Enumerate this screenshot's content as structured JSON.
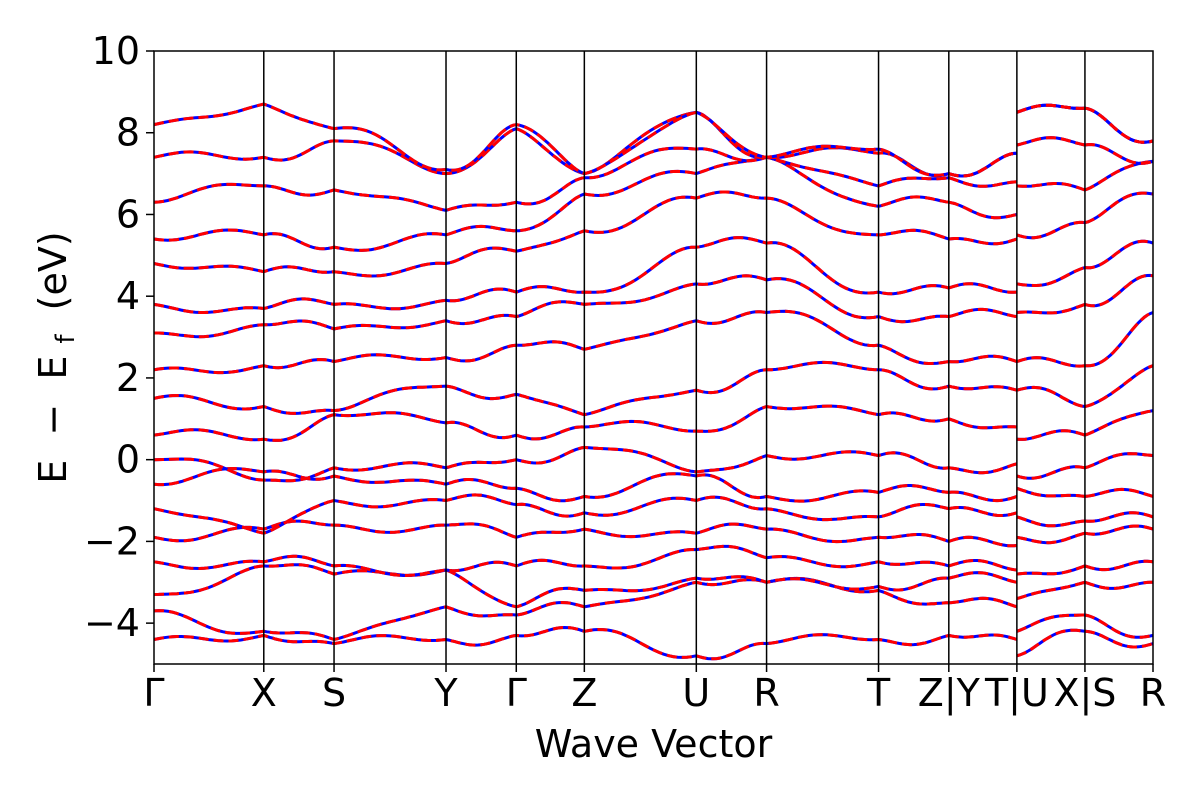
{
  "chart_data": {
    "type": "line",
    "xlabel": "Wave Vector",
    "ylabel_parts": {
      "E1": "E",
      "minus": "−",
      "E2": "E",
      "sub": "f",
      "unit": "(eV)"
    },
    "ylim": [
      -5,
      10
    ],
    "yticks": [
      -4,
      -2,
      0,
      2,
      4,
      6,
      8,
      10
    ],
    "ytick_labels": [
      "−4",
      "−2",
      "0",
      "2",
      "4",
      "6",
      "8",
      "10"
    ],
    "segments": [
      {
        "path": [
          "Γ",
          "X",
          "S",
          "Y",
          "Γ",
          "Z",
          "U",
          "R",
          "T",
          "Z"
        ],
        "k": [
          0,
          1.0,
          1.64,
          2.66,
          3.3,
          3.92,
          4.94,
          5.58,
          6.6,
          7.24
        ]
      },
      {
        "path": [
          "Y",
          "T"
        ],
        "k": [
          7.24,
          7.86
        ]
      },
      {
        "path": [
          "U",
          "X"
        ],
        "k": [
          7.86,
          8.48
        ]
      },
      {
        "path": [
          "S",
          "R"
        ],
        "k": [
          8.48,
          9.1
        ]
      }
    ],
    "tick_labels": [
      "Γ",
      "X",
      "S",
      "Y",
      "Γ",
      "Z",
      "U",
      "R",
      "T",
      "Z|Y",
      "T|U",
      "X|S",
      "R"
    ],
    "series": [
      {
        "color": "#0000ff",
        "style": "solid",
        "bands_at_nodes": [
          [
            -4.4,
            -4.3,
            -4.5,
            -4.4,
            -4.3,
            -4.2,
            -4.8,
            -4.5,
            -4.4,
            -4.3,
            -4.4,
            -4.8,
            -4.2,
            -4.5
          ],
          [
            -3.7,
            -4.2,
            -4.4,
            -3.6,
            -3.8,
            -3.6,
            -3.0,
            -3.0,
            -3.2,
            -3.5,
            -3.6,
            -4.2,
            -3.8,
            -4.3
          ],
          [
            -3.3,
            -2.6,
            -2.8,
            -2.7,
            -3.6,
            -3.2,
            -2.9,
            -3.0,
            -3.1,
            -2.9,
            -3.0,
            -3.4,
            -3.0,
            -3.0
          ],
          [
            -2.5,
            -2.5,
            -2.6,
            -2.7,
            -2.6,
            -2.6,
            -2.2,
            -2.4,
            -2.5,
            -2.6,
            -2.7,
            -2.8,
            -2.6,
            -2.5
          ],
          [
            -1.9,
            -1.7,
            -1.6,
            -1.6,
            -1.9,
            -1.7,
            -1.8,
            -1.7,
            -1.9,
            -2.0,
            -2.1,
            -1.9,
            -1.8,
            -1.7
          ],
          [
            -1.2,
            -1.8,
            -1.0,
            -1.0,
            -1.1,
            -1.3,
            -1.0,
            -1.2,
            -1.4,
            -1.2,
            -1.3,
            -1.4,
            -1.5,
            -1.4
          ],
          [
            -0.6,
            -0.3,
            -0.4,
            -0.6,
            -0.7,
            -0.9,
            -0.4,
            -0.9,
            -0.8,
            -0.8,
            -0.9,
            -0.7,
            -0.9,
            -0.9
          ],
          [
            0.0,
            -0.5,
            -0.2,
            -0.2,
            0.0,
            0.3,
            -0.3,
            0.1,
            0.1,
            -0.2,
            -0.1,
            -0.4,
            -0.2,
            0.1
          ],
          [
            0.6,
            0.5,
            1.1,
            0.9,
            0.6,
            0.8,
            0.7,
            1.3,
            1.1,
            1.0,
            0.8,
            0.5,
            0.6,
            1.2
          ],
          [
            1.5,
            1.3,
            1.2,
            1.8,
            1.6,
            1.1,
            1.7,
            2.2,
            2.2,
            1.8,
            1.7,
            1.7,
            1.3,
            2.3
          ],
          [
            2.2,
            2.3,
            2.4,
            2.5,
            2.8,
            2.7,
            3.4,
            3.6,
            2.8,
            2.4,
            2.4,
            2.4,
            2.3,
            3.6
          ],
          [
            3.1,
            3.3,
            3.2,
            3.4,
            3.5,
            3.8,
            4.3,
            4.4,
            3.5,
            3.5,
            3.5,
            3.6,
            3.8,
            4.5
          ],
          [
            3.8,
            3.7,
            3.8,
            3.9,
            4.1,
            4.1,
            5.2,
            5.3,
            4.1,
            4.2,
            4.1,
            4.3,
            4.7,
            5.3
          ],
          [
            4.8,
            4.6,
            4.6,
            4.8,
            5.1,
            5.6,
            6.4,
            6.4,
            5.5,
            5.4,
            5.4,
            5.5,
            5.8,
            6.5
          ],
          [
            5.4,
            5.5,
            5.2,
            5.5,
            5.6,
            6.5,
            7.0,
            7.4,
            6.2,
            6.3,
            6.0,
            6.7,
            6.6,
            7.3
          ],
          [
            6.3,
            6.7,
            6.6,
            6.1,
            6.3,
            6.9,
            7.6,
            7.4,
            6.7,
            6.9,
            6.8,
            7.7,
            7.7,
            7.3
          ],
          [
            7.4,
            7.4,
            7.8,
            7.0,
            8.1,
            7.0,
            8.5,
            7.4,
            7.5,
            7.0,
            7.5,
            8.5,
            8.6,
            7.8
          ],
          [
            8.2,
            8.7,
            8.1,
            7.1,
            8.2,
            7.0,
            8.5,
            7.4,
            7.6,
            7.0,
            7.5,
            8.5,
            8.6,
            7.8
          ]
        ]
      },
      {
        "color": "#ff0000",
        "style": "dashed",
        "bands_at_nodes": "same as blue series"
      }
    ]
  }
}
